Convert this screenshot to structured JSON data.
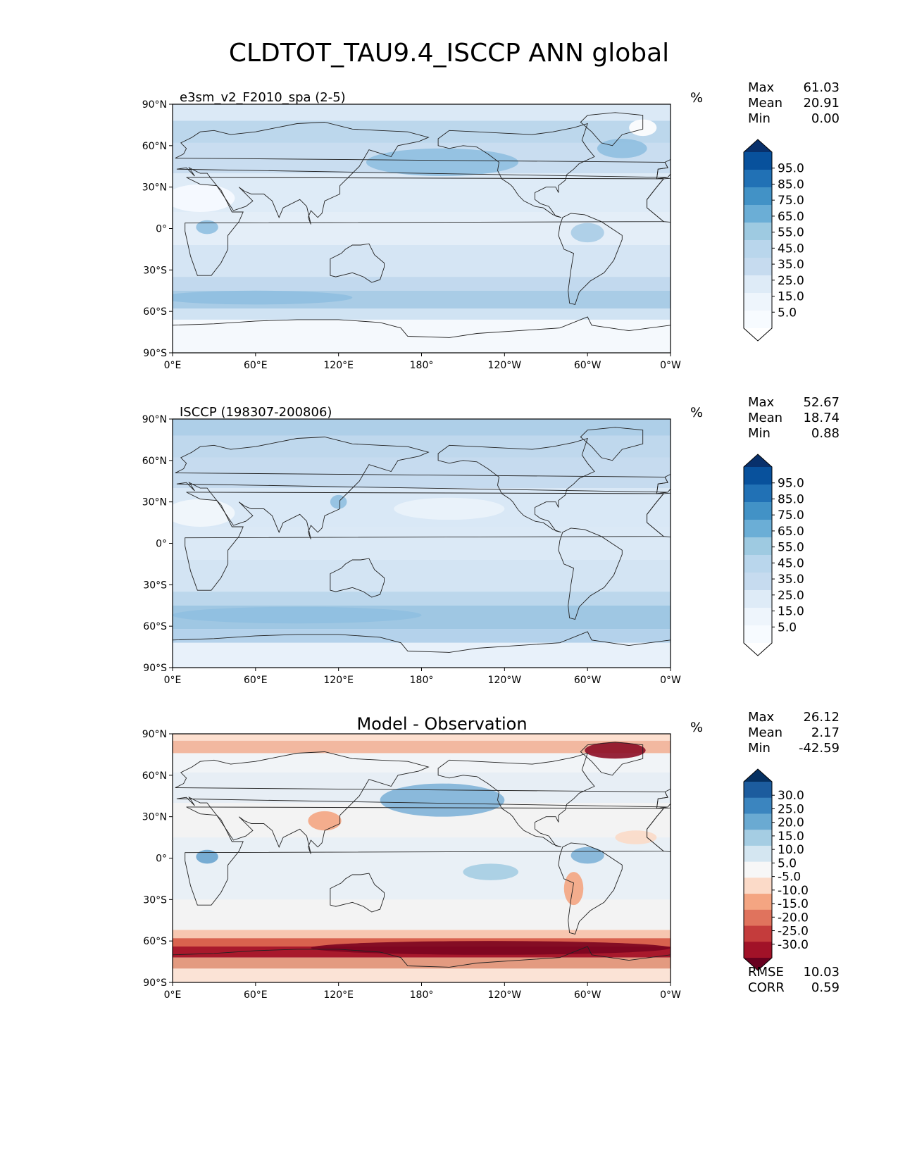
{
  "figure_title": "CLDTOT_TAU9.4_ISCCP ANN global",
  "axes": {
    "lat_ticks": [
      "90°N",
      "60°N",
      "30°N",
      "0°",
      "30°S",
      "60°S",
      "90°S"
    ],
    "lon_ticks": [
      "0°E",
      "60°E",
      "120°E",
      "180°",
      "120°W",
      "60°W",
      "0°W"
    ]
  },
  "panels": [
    {
      "id": "model",
      "title_left": "e3sm_v2_F2010_spa (2-5)",
      "title_center": "",
      "unit": "%",
      "stats": [
        {
          "label": "Max",
          "value": "61.03"
        },
        {
          "label": "Mean",
          "value": "20.91"
        },
        {
          "label": "Min",
          "value": "0.00"
        }
      ],
      "colorbar": {
        "labels": [
          "95.0",
          "85.0",
          "75.0",
          "65.0",
          "55.0",
          "45.0",
          "35.0",
          "25.0",
          "15.0",
          "5.0"
        ],
        "colors": [
          "#08306b",
          "#08519c",
          "#2171b5",
          "#4292c6",
          "#6baed6",
          "#9ecae1",
          "#b9d6ec",
          "#c6dbef",
          "#deebf7",
          "#eef5fc",
          "#f7fbff",
          "#ffffff"
        ]
      }
    },
    {
      "id": "obs",
      "title_left": "ISCCP (198307-200806)",
      "title_center": "",
      "unit": "%",
      "stats": [
        {
          "label": "Max",
          "value": "52.67"
        },
        {
          "label": "Mean",
          "value": "18.74"
        },
        {
          "label": "Min",
          "value": "0.88"
        }
      ],
      "colorbar": {
        "labels": [
          "95.0",
          "85.0",
          "75.0",
          "65.0",
          "55.0",
          "45.0",
          "35.0",
          "25.0",
          "15.0",
          "5.0"
        ],
        "colors": [
          "#08306b",
          "#08519c",
          "#2171b5",
          "#4292c6",
          "#6baed6",
          "#9ecae1",
          "#b9d6ec",
          "#c6dbef",
          "#deebf7",
          "#eef5fc",
          "#f7fbff",
          "#ffffff"
        ]
      }
    },
    {
      "id": "diff",
      "title_left": "",
      "title_center": "Model - Observation",
      "unit": "%",
      "stats": [
        {
          "label": "Max",
          "value": "26.12"
        },
        {
          "label": "Mean",
          "value": "2.17"
        },
        {
          "label": "Min",
          "value": "-42.59"
        }
      ],
      "colorbar": {
        "labels": [
          "30.0",
          "25.0",
          "20.0",
          "15.0",
          "10.0",
          "5.0",
          "-5.0",
          "-10.0",
          "-15.0",
          "-20.0",
          "-25.0",
          "-30.0"
        ],
        "colors": [
          "#053061",
          "#1c5c9e",
          "#3b85bf",
          "#6aaad2",
          "#a5cde3",
          "#d4e6f1",
          "#f7f7f7",
          "#fbdac8",
          "#f4a582",
          "#e0735d",
          "#c43c3c",
          "#a11228",
          "#67001f"
        ]
      },
      "extra_stats": [
        {
          "label": "RMSE",
          "value": "10.03"
        },
        {
          "label": "CORR",
          "value": "0.59"
        }
      ]
    }
  ]
}
